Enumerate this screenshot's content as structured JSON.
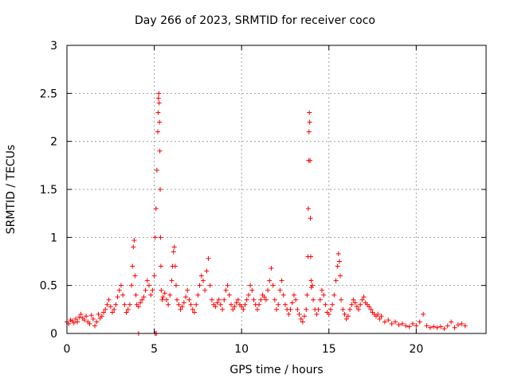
{
  "chart_data": {
    "type": "scatter",
    "title": "Day 266 of 2023, SRMTID for receiver coco",
    "xlabel": "GPS time / hours",
    "ylabel": "SRMTID / TECUs",
    "xlim": [
      0,
      24
    ],
    "ylim": [
      0,
      3
    ],
    "xticks": [
      0,
      5,
      10,
      15,
      20
    ],
    "yticks": [
      0,
      0.5,
      1,
      1.5,
      2,
      2.5,
      3
    ],
    "ytick_labels": [
      "0",
      "0.5",
      "1",
      "1.5",
      "2",
      "2.5",
      "3"
    ],
    "grid": true,
    "marker": "+",
    "color": "#ff0000",
    "series": [
      {
        "name": "SRMTID",
        "x": [
          0.0,
          0.1,
          0.2,
          0.3,
          0.4,
          0.5,
          0.6,
          0.7,
          0.8,
          0.9,
          1.0,
          1.1,
          1.2,
          1.3,
          1.4,
          1.5,
          1.6,
          1.7,
          1.8,
          1.9,
          2.0,
          2.1,
          2.2,
          2.3,
          2.4,
          2.5,
          2.6,
          2.7,
          2.8,
          2.9,
          3.0,
          3.1,
          3.2,
          3.3,
          3.4,
          3.5,
          3.6,
          3.7,
          3.75,
          3.8,
          3.85,
          3.9,
          3.95,
          4.0,
          4.1,
          4.2,
          4.3,
          4.4,
          4.5,
          4.6,
          4.7,
          4.8,
          4.9,
          5.0,
          5.05,
          5.1,
          5.15,
          5.2,
          5.22,
          5.24,
          5.26,
          5.28,
          5.3,
          5.32,
          5.34,
          5.36,
          5.38,
          5.4,
          5.45,
          5.5,
          5.6,
          5.7,
          5.8,
          5.9,
          6.0,
          6.05,
          6.1,
          6.15,
          6.2,
          6.25,
          6.3,
          6.4,
          6.5,
          6.6,
          6.7,
          6.8,
          6.9,
          7.0,
          7.1,
          7.2,
          7.3,
          7.4,
          7.5,
          7.6,
          7.7,
          7.8,
          7.9,
          8.0,
          8.1,
          8.2,
          8.3,
          8.4,
          8.5,
          8.6,
          8.7,
          8.8,
          8.9,
          9.0,
          9.1,
          9.2,
          9.3,
          9.4,
          9.5,
          9.6,
          9.7,
          9.8,
          9.9,
          10.0,
          10.1,
          10.2,
          10.3,
          10.4,
          10.5,
          10.6,
          10.7,
          10.8,
          10.9,
          11.0,
          11.1,
          11.2,
          11.3,
          11.4,
          11.5,
          11.6,
          11.7,
          11.8,
          11.9,
          12.0,
          12.1,
          12.2,
          12.3,
          12.4,
          12.5,
          12.6,
          12.7,
          12.8,
          12.9,
          13.0,
          13.1,
          13.2,
          13.3,
          13.4,
          13.5,
          13.6,
          13.7,
          13.75,
          13.8,
          13.82,
          13.84,
          13.86,
          13.88,
          13.9,
          13.92,
          13.94,
          13.96,
          13.98,
          14.0,
          14.05,
          14.1,
          14.2,
          14.3,
          14.4,
          14.5,
          14.6,
          14.7,
          14.8,
          14.9,
          15.0,
          15.1,
          15.2,
          15.3,
          15.4,
          15.5,
          15.55,
          15.6,
          15.65,
          15.7,
          15.8,
          15.9,
          16.0,
          16.1,
          16.2,
          16.3,
          16.4,
          16.5,
          16.6,
          16.7,
          16.8,
          16.9,
          17.0,
          17.1,
          17.2,
          17.3,
          17.4,
          17.5,
          17.6,
          17.7,
          17.8,
          17.9,
          18.0,
          18.2,
          18.4,
          18.6,
          18.8,
          19.0,
          19.2,
          19.4,
          19.6,
          19.8,
          20.0,
          20.2,
          20.4,
          20.6,
          20.8,
          21.0,
          21.2,
          21.4,
          21.6,
          21.8,
          22.0,
          22.2,
          22.4,
          22.6,
          22.8,
          4.1,
          5.05,
          5.12
        ],
        "y": [
          0.12,
          0.1,
          0.14,
          0.13,
          0.11,
          0.15,
          0.12,
          0.17,
          0.2,
          0.16,
          0.14,
          0.18,
          0.12,
          0.1,
          0.19,
          0.15,
          0.08,
          0.12,
          0.2,
          0.16,
          0.18,
          0.22,
          0.25,
          0.3,
          0.35,
          0.28,
          0.22,
          0.25,
          0.3,
          0.38,
          0.45,
          0.5,
          0.4,
          0.3,
          0.22,
          0.25,
          0.3,
          0.5,
          0.7,
          0.9,
          0.97,
          0.6,
          0.4,
          0.3,
          0.28,
          0.32,
          0.35,
          0.38,
          0.45,
          0.55,
          0.5,
          0.4,
          0.45,
          0.6,
          1.0,
          1.3,
          1.7,
          2.1,
          2.3,
          2.45,
          2.5,
          2.4,
          2.2,
          1.9,
          1.5,
          1.0,
          0.7,
          0.45,
          0.35,
          0.38,
          0.42,
          0.35,
          0.3,
          0.4,
          0.55,
          0.7,
          0.85,
          0.9,
          0.7,
          0.5,
          0.35,
          0.3,
          0.25,
          0.28,
          0.32,
          0.38,
          0.45,
          0.35,
          0.3,
          0.25,
          0.22,
          0.3,
          0.4,
          0.5,
          0.6,
          0.55,
          0.45,
          0.65,
          0.78,
          0.5,
          0.35,
          0.3,
          0.28,
          0.32,
          0.35,
          0.3,
          0.25,
          0.35,
          0.45,
          0.5,
          0.4,
          0.3,
          0.25,
          0.28,
          0.32,
          0.35,
          0.3,
          0.28,
          0.25,
          0.3,
          0.35,
          0.4,
          0.5,
          0.45,
          0.35,
          0.3,
          0.25,
          0.3,
          0.35,
          0.4,
          0.38,
          0.35,
          0.45,
          0.55,
          0.68,
          0.5,
          0.35,
          0.25,
          0.3,
          0.45,
          0.55,
          0.4,
          0.3,
          0.25,
          0.2,
          0.25,
          0.32,
          0.4,
          0.35,
          0.25,
          0.2,
          0.15,
          0.12,
          0.18,
          0.25,
          0.4,
          0.8,
          1.3,
          1.8,
          2.1,
          2.3,
          2.2,
          1.8,
          1.2,
          0.8,
          0.55,
          0.48,
          0.5,
          0.35,
          0.25,
          0.2,
          0.25,
          0.35,
          0.45,
          0.4,
          0.3,
          0.22,
          0.2,
          0.25,
          0.3,
          0.4,
          0.55,
          0.7,
          0.83,
          0.75,
          0.6,
          0.35,
          0.25,
          0.2,
          0.15,
          0.18,
          0.25,
          0.3,
          0.35,
          0.32,
          0.28,
          0.25,
          0.3,
          0.35,
          0.38,
          0.32,
          0.3,
          0.28,
          0.25,
          0.22,
          0.2,
          0.18,
          0.2,
          0.15,
          0.18,
          0.12,
          0.14,
          0.1,
          0.12,
          0.09,
          0.1,
          0.08,
          0.07,
          0.1,
          0.08,
          0.12,
          0.2,
          0.08,
          0.06,
          0.07,
          0.06,
          0.07,
          0.05,
          0.08,
          0.12,
          0.06,
          0.09,
          0.1,
          0.08,
          0.0,
          0.0,
          0.0
        ]
      }
    ]
  }
}
